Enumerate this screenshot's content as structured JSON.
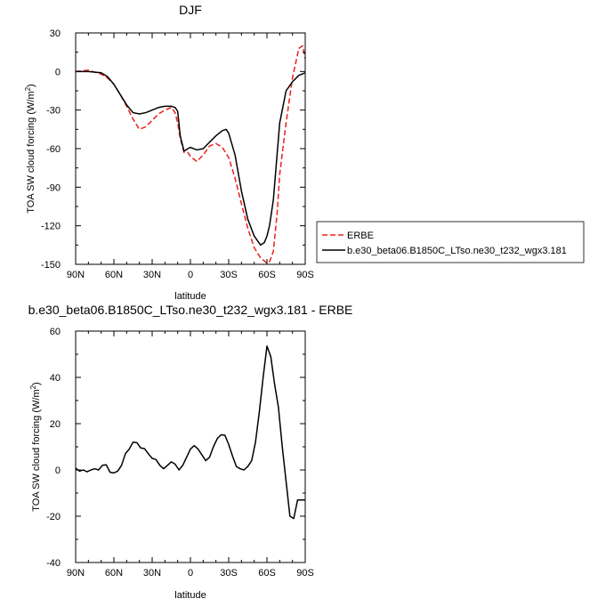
{
  "chart_data": [
    {
      "type": "line",
      "title": "DJF",
      "xlabel": "latitude",
      "ylabel": "TOA SW cloud forcing (W/m",
      "ylabel_sup": "2",
      "ylabel_close": ")",
      "xlim": [
        90,
        -90
      ],
      "ylim": [
        -150,
        30
      ],
      "xticks": [
        90,
        60,
        30,
        0,
        -30,
        -60,
        -90
      ],
      "xtick_labels": [
        "90N",
        "60N",
        "30N",
        "0",
        "30S",
        "60S",
        "90S"
      ],
      "yticks": [
        30,
        0,
        -30,
        -60,
        -90,
        -120,
        -150
      ],
      "ytick_labels": [
        "30",
        "0",
        "-30",
        "-60",
        "-90",
        "-120",
        "-150"
      ],
      "legend_position": "right",
      "series": [
        {
          "name": "ERBE",
          "color": "#e8211b",
          "dash": "dashed",
          "x": [
            90,
            80,
            70,
            65,
            60,
            55,
            50,
            45,
            40,
            35,
            30,
            25,
            20,
            15,
            12,
            10,
            8,
            5,
            2,
            0,
            -5,
            -10,
            -15,
            -20,
            -25,
            -30,
            -35,
            -40,
            -45,
            -50,
            -55,
            -60,
            -62,
            -65,
            -68,
            -70,
            -75,
            -80,
            -85,
            -88,
            -90
          ],
          "y": [
            0,
            1,
            -2,
            -5,
            -10,
            -18,
            -27,
            -37,
            -45,
            -43,
            -38,
            -33,
            -30,
            -28,
            -32,
            -40,
            -52,
            -63,
            -63,
            -66,
            -70,
            -65,
            -58,
            -56,
            -59,
            -67,
            -83,
            -103,
            -122,
            -137,
            -145,
            -149,
            -148,
            -140,
            -110,
            -80,
            -40,
            -5,
            18,
            20,
            10
          ]
        },
        {
          "name": "b.e30_beta06.B1850C_LTso.ne30_t232_wgx3.181",
          "color": "#000000",
          "dash": "solid",
          "x": [
            90,
            80,
            70,
            65,
            60,
            55,
            50,
            45,
            40,
            35,
            30,
            25,
            20,
            15,
            12,
            10,
            8,
            5,
            2,
            0,
            -5,
            -10,
            -15,
            -20,
            -25,
            -28,
            -30,
            -35,
            -40,
            -45,
            -50,
            -55,
            -58,
            -60,
            -62,
            -65,
            -70,
            -75,
            -80,
            -85,
            -90
          ],
          "y": [
            0,
            0,
            -1,
            -4,
            -10,
            -18,
            -26,
            -32,
            -33,
            -32,
            -30,
            -28,
            -27,
            -27,
            -28,
            -31,
            -50,
            -62,
            -60,
            -59,
            -61,
            -60,
            -55,
            -50,
            -46,
            -45,
            -48,
            -65,
            -93,
            -115,
            -128,
            -135,
            -133,
            -128,
            -120,
            -100,
            -40,
            -15,
            -8,
            -3,
            -1
          ]
        }
      ]
    },
    {
      "type": "line",
      "title": "b.e30_beta06.B1850C_LTso.ne30_t232_wgx3.181 - ERBE",
      "xlabel": "latitude",
      "ylabel": "TOA SW cloud forcing (W/m",
      "ylabel_sup": "2",
      "ylabel_close": ")",
      "xlim": [
        90,
        -90
      ],
      "ylim": [
        -40,
        60
      ],
      "xticks": [
        90,
        60,
        30,
        0,
        -30,
        -60,
        -90
      ],
      "xtick_labels": [
        "90N",
        "60N",
        "30N",
        "0",
        "30S",
        "60S",
        "90S"
      ],
      "yticks": [
        60,
        40,
        20,
        0,
        -20,
        -40
      ],
      "ytick_labels": [
        "60",
        "40",
        "20",
        "0",
        "-20",
        "-40"
      ],
      "series": [
        {
          "color": "#000000",
          "dash": "solid",
          "x": [
            90,
            87,
            84,
            81,
            78,
            75,
            72,
            69,
            66,
            63,
            60,
            57,
            54,
            51,
            48,
            45,
            42,
            39,
            36,
            33,
            30,
            27,
            24,
            21,
            18,
            15,
            12,
            9,
            6,
            3,
            0,
            -3,
            -6,
            -9,
            -12,
            -15,
            -18,
            -21,
            -24,
            -27,
            -30,
            -33,
            -36,
            -39,
            -42,
            -45,
            -48,
            -51,
            -54,
            -57,
            -60,
            -63,
            -66,
            -69,
            -72,
            -75,
            -78,
            -81,
            -84,
            -87,
            -90
          ],
          "y": [
            0.8,
            -0.5,
            0,
            -0.8,
            0,
            0.5,
            0,
            2,
            2.2,
            -1,
            -1.3,
            -0.5,
            2,
            7,
            9,
            12,
            11.8,
            9.5,
            9.2,
            7,
            5,
            4.5,
            2,
            0.5,
            2,
            3.5,
            2.5,
            0,
            2,
            5.5,
            9,
            10.5,
            9,
            6.5,
            4,
            5.5,
            10,
            13.5,
            15.2,
            15,
            11,
            6,
            1.5,
            0.5,
            0,
            1.5,
            4,
            12,
            25,
            40,
            53.5,
            49,
            37,
            27,
            10,
            -5,
            -20,
            -21,
            -13,
            -13,
            -13
          ]
        }
      ]
    }
  ]
}
